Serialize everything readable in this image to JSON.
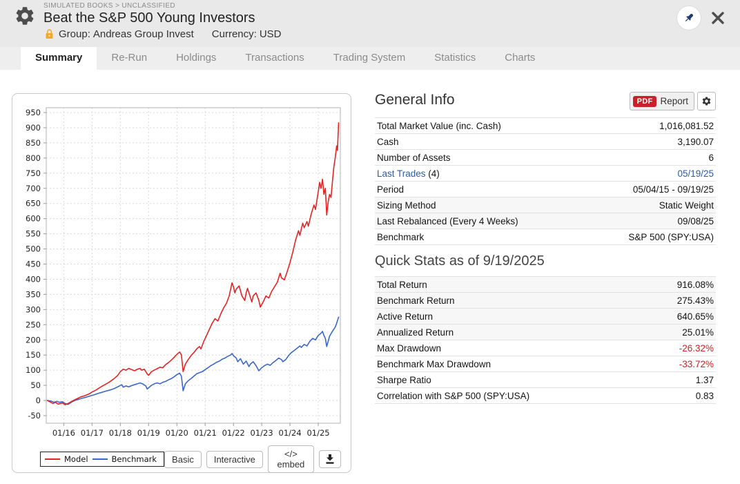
{
  "header": {
    "breadcrumb": "SIMULATED BOOKS > UNCLASSIFIED",
    "title": "Beat the S&P 500 Young Investors",
    "group_label": "Group:",
    "group_value": "Andreas Group Invest",
    "currency_label": "Currency:",
    "currency_value": "USD"
  },
  "tabs": [
    {
      "label": "Summary",
      "active": true
    },
    {
      "label": "Re-Run",
      "active": false
    },
    {
      "label": "Holdings",
      "active": false
    },
    {
      "label": "Transactions",
      "active": false
    },
    {
      "label": "Trading System",
      "active": false
    },
    {
      "label": "Statistics",
      "active": false
    },
    {
      "label": "Charts",
      "active": false
    }
  ],
  "chart_data": {
    "type": "line",
    "title": "",
    "xlabel": "",
    "ylabel": "",
    "ylim": [
      -50,
      950
    ],
    "y_tick_step": 50,
    "grid": true,
    "legend_position": "bottom-left",
    "x_ticks": [
      2016,
      2017,
      2018,
      2019,
      2020,
      2021,
      2022,
      2023,
      2024,
      2025
    ],
    "x_tick_labels": [
      "01/16",
      "01/17",
      "01/18",
      "01/19",
      "01/20",
      "01/21",
      "01/22",
      "01/23",
      "01/24",
      "01/25"
    ],
    "series": [
      {
        "name": "Model",
        "color": "#e62323",
        "points": [
          [
            2015.42,
            0
          ],
          [
            2015.5,
            -4
          ],
          [
            2015.62,
            -10
          ],
          [
            2015.7,
            -6
          ],
          [
            2015.8,
            -12
          ],
          [
            2015.95,
            -8
          ],
          [
            2016.05,
            -14
          ],
          [
            2016.15,
            -10
          ],
          [
            2016.3,
            -2
          ],
          [
            2016.45,
            5
          ],
          [
            2016.6,
            12
          ],
          [
            2016.75,
            16
          ],
          [
            2016.9,
            22
          ],
          [
            2017.0,
            28
          ],
          [
            2017.15,
            35
          ],
          [
            2017.3,
            44
          ],
          [
            2017.45,
            52
          ],
          [
            2017.6,
            60
          ],
          [
            2017.75,
            70
          ],
          [
            2017.9,
            82
          ],
          [
            2018.0,
            95
          ],
          [
            2018.1,
            103
          ],
          [
            2018.2,
            100
          ],
          [
            2018.3,
            106
          ],
          [
            2018.4,
            102
          ],
          [
            2018.5,
            98
          ],
          [
            2018.6,
            103
          ],
          [
            2018.7,
            106
          ],
          [
            2018.75,
            100
          ],
          [
            2018.85,
            103
          ],
          [
            2018.95,
            88
          ],
          [
            2019.0,
            83
          ],
          [
            2019.1,
            95
          ],
          [
            2019.2,
            100
          ],
          [
            2019.3,
            105
          ],
          [
            2019.4,
            110
          ],
          [
            2019.5,
            108
          ],
          [
            2019.6,
            118
          ],
          [
            2019.7,
            125
          ],
          [
            2019.8,
            133
          ],
          [
            2019.9,
            142
          ],
          [
            2020.0,
            152
          ],
          [
            2020.1,
            160
          ],
          [
            2020.16,
            150
          ],
          [
            2020.22,
            95
          ],
          [
            2020.3,
            120
          ],
          [
            2020.4,
            135
          ],
          [
            2020.5,
            148
          ],
          [
            2020.6,
            158
          ],
          [
            2020.7,
            170
          ],
          [
            2020.8,
            178
          ],
          [
            2020.85,
            170
          ],
          [
            2020.95,
            195
          ],
          [
            2021.05,
            215
          ],
          [
            2021.15,
            235
          ],
          [
            2021.25,
            255
          ],
          [
            2021.35,
            270
          ],
          [
            2021.45,
            262
          ],
          [
            2021.55,
            285
          ],
          [
            2021.65,
            305
          ],
          [
            2021.75,
            320
          ],
          [
            2021.85,
            345
          ],
          [
            2021.95,
            388
          ],
          [
            2022.0,
            375
          ],
          [
            2022.05,
            355
          ],
          [
            2022.1,
            368
          ],
          [
            2022.2,
            378
          ],
          [
            2022.3,
            345
          ],
          [
            2022.4,
            330
          ],
          [
            2022.45,
            355
          ],
          [
            2022.5,
            370
          ],
          [
            2022.6,
            340
          ],
          [
            2022.65,
            325
          ],
          [
            2022.7,
            345
          ],
          [
            2022.8,
            355
          ],
          [
            2022.9,
            330
          ],
          [
            2022.95,
            308
          ],
          [
            2023.05,
            325
          ],
          [
            2023.15,
            345
          ],
          [
            2023.25,
            338
          ],
          [
            2023.35,
            360
          ],
          [
            2023.45,
            375
          ],
          [
            2023.55,
            390
          ],
          [
            2023.65,
            420
          ],
          [
            2023.7,
            405
          ],
          [
            2023.8,
            398
          ],
          [
            2023.9,
            425
          ],
          [
            2024.0,
            455
          ],
          [
            2024.1,
            490
          ],
          [
            2024.2,
            530
          ],
          [
            2024.3,
            560
          ],
          [
            2024.35,
            545
          ],
          [
            2024.45,
            585
          ],
          [
            2024.5,
            570
          ],
          [
            2024.6,
            590
          ],
          [
            2024.65,
            575
          ],
          [
            2024.75,
            615
          ],
          [
            2024.85,
            645
          ],
          [
            2024.9,
            630
          ],
          [
            2025.0,
            690
          ],
          [
            2025.05,
            720
          ],
          [
            2025.1,
            700
          ],
          [
            2025.15,
            730
          ],
          [
            2025.2,
            680
          ],
          [
            2025.25,
            700
          ],
          [
            2025.3,
            612
          ],
          [
            2025.35,
            655
          ],
          [
            2025.4,
            680
          ],
          [
            2025.45,
            670
          ],
          [
            2025.5,
            720
          ],
          [
            2025.55,
            770
          ],
          [
            2025.6,
            800
          ],
          [
            2025.65,
            840
          ],
          [
            2025.68,
            825
          ],
          [
            2025.72,
            916
          ]
        ]
      },
      {
        "name": "Benchmark",
        "color": "#3a67c8",
        "points": [
          [
            2015.42,
            0
          ],
          [
            2015.55,
            -2
          ],
          [
            2015.65,
            -6
          ],
          [
            2015.75,
            -3
          ],
          [
            2015.85,
            -6
          ],
          [
            2015.95,
            -4
          ],
          [
            2016.05,
            -10
          ],
          [
            2016.15,
            -13
          ],
          [
            2016.3,
            -4
          ],
          [
            2016.45,
            2
          ],
          [
            2016.6,
            6
          ],
          [
            2016.75,
            10
          ],
          [
            2016.9,
            14
          ],
          [
            2017.05,
            18
          ],
          [
            2017.2,
            23
          ],
          [
            2017.35,
            27
          ],
          [
            2017.5,
            31
          ],
          [
            2017.65,
            35
          ],
          [
            2017.8,
            40
          ],
          [
            2017.95,
            47
          ],
          [
            2018.05,
            52
          ],
          [
            2018.1,
            44
          ],
          [
            2018.2,
            48
          ],
          [
            2018.3,
            45
          ],
          [
            2018.4,
            49
          ],
          [
            2018.5,
            52
          ],
          [
            2018.6,
            55
          ],
          [
            2018.7,
            58
          ],
          [
            2018.8,
            54
          ],
          [
            2018.9,
            48
          ],
          [
            2018.95,
            38
          ],
          [
            2019.0,
            42
          ],
          [
            2019.1,
            50
          ],
          [
            2019.2,
            55
          ],
          [
            2019.3,
            58
          ],
          [
            2019.4,
            55
          ],
          [
            2019.5,
            60
          ],
          [
            2019.6,
            63
          ],
          [
            2019.7,
            68
          ],
          [
            2019.8,
            72
          ],
          [
            2019.9,
            78
          ],
          [
            2020.0,
            85
          ],
          [
            2020.1,
            90
          ],
          [
            2020.16,
            80
          ],
          [
            2020.22,
            32
          ],
          [
            2020.3,
            55
          ],
          [
            2020.4,
            65
          ],
          [
            2020.5,
            72
          ],
          [
            2020.6,
            80
          ],
          [
            2020.7,
            88
          ],
          [
            2020.8,
            92
          ],
          [
            2020.9,
            95
          ],
          [
            2021.0,
            102
          ],
          [
            2021.1,
            108
          ],
          [
            2021.2,
            115
          ],
          [
            2021.3,
            120
          ],
          [
            2021.4,
            126
          ],
          [
            2021.5,
            130
          ],
          [
            2021.6,
            136
          ],
          [
            2021.7,
            140
          ],
          [
            2021.8,
            146
          ],
          [
            2021.9,
            150
          ],
          [
            2021.95,
            155
          ],
          [
            2022.0,
            148
          ],
          [
            2022.1,
            140
          ],
          [
            2022.15,
            128
          ],
          [
            2022.25,
            138
          ],
          [
            2022.35,
            120
          ],
          [
            2022.45,
            130
          ],
          [
            2022.55,
            112
          ],
          [
            2022.6,
            120
          ],
          [
            2022.7,
            128
          ],
          [
            2022.8,
            115
          ],
          [
            2022.9,
            98
          ],
          [
            2023.0,
            108
          ],
          [
            2023.1,
            115
          ],
          [
            2023.2,
            120
          ],
          [
            2023.3,
            116
          ],
          [
            2023.4,
            125
          ],
          [
            2023.5,
            132
          ],
          [
            2023.6,
            140
          ],
          [
            2023.7,
            135
          ],
          [
            2023.75,
            128
          ],
          [
            2023.85,
            135
          ],
          [
            2023.95,
            148
          ],
          [
            2024.05,
            158
          ],
          [
            2024.15,
            165
          ],
          [
            2024.25,
            172
          ],
          [
            2024.35,
            180
          ],
          [
            2024.4,
            175
          ],
          [
            2024.5,
            185
          ],
          [
            2024.6,
            180
          ],
          [
            2024.7,
            195
          ],
          [
            2024.8,
            205
          ],
          [
            2024.9,
            200
          ],
          [
            2025.0,
            215
          ],
          [
            2025.1,
            222
          ],
          [
            2025.15,
            228
          ],
          [
            2025.2,
            215
          ],
          [
            2025.25,
            205
          ],
          [
            2025.3,
            178
          ],
          [
            2025.4,
            212
          ],
          [
            2025.5,
            228
          ],
          [
            2025.6,
            242
          ],
          [
            2025.65,
            255
          ],
          [
            2025.72,
            275
          ]
        ]
      }
    ]
  },
  "chart_controls": {
    "buttons": [
      {
        "label": "Basic"
      },
      {
        "label": "Interactive"
      },
      {
        "label": "</> embed"
      }
    ]
  },
  "general_info": {
    "title": "General Info",
    "report_badge": "PDF",
    "report_label": "Report",
    "rows": [
      {
        "label": "Total Market Value (inc. Cash)",
        "value": "1,016,081.52"
      },
      {
        "label": "Cash",
        "value": "3,190.07"
      },
      {
        "label": "Number of Assets",
        "value": "6"
      },
      {
        "label": "Last Trades",
        "label_suffix": " (4)",
        "label_link": true,
        "value": "05/19/25",
        "value_link": true
      },
      {
        "label": "Period",
        "value": "05/04/15 - 09/19/25"
      },
      {
        "label": "Sizing Method",
        "value": "Static Weight",
        "shaded": true
      },
      {
        "label": "Last Rebalanced (Every 4 Weeks)",
        "value": "09/08/25",
        "shaded": true
      },
      {
        "label": "Benchmark",
        "value": "S&P 500 (SPY:USA)"
      }
    ]
  },
  "quick_stats": {
    "title": "Quick Stats as of 9/19/2025",
    "rows": [
      {
        "label": "Total Return",
        "value": "916.08%",
        "shaded": true
      },
      {
        "label": "Benchmark Return",
        "value": "275.43%",
        "shaded": true
      },
      {
        "label": "Active Return",
        "value": "640.65%",
        "shaded": true
      },
      {
        "label": "Annualized Return",
        "value": "25.01%",
        "shaded": true
      },
      {
        "label": "Max Drawdown",
        "value": "-26.32%",
        "negative": true
      },
      {
        "label": "Benchmark Max Drawdown",
        "value": "-33.72%",
        "negative": true
      },
      {
        "label": "Sharpe Ratio",
        "value": "1.37"
      },
      {
        "label": "Correlation with S&P 500 (SPY:USA)",
        "value": "0.83"
      }
    ]
  },
  "colors": {
    "model_line": "#e62323",
    "benchmark_line": "#3a67c8",
    "negative_value": "#cc2222",
    "link": "#2a5caa",
    "pdf_badge": "#c9202c",
    "lock_icon": "#f5a623"
  }
}
